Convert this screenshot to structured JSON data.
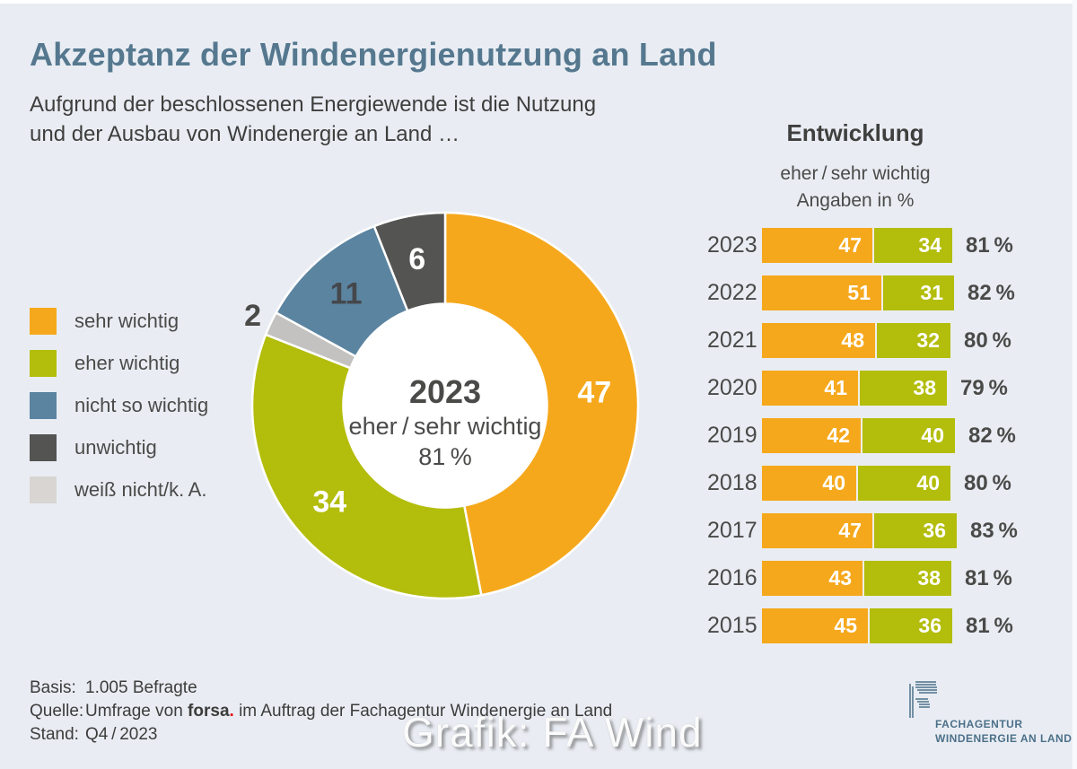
{
  "page": {
    "background": "#E9EDF3"
  },
  "header": {
    "title": "Akzeptanz der Windenergienutzung an Land",
    "subtitle_line1": "Aufgrund der beschlossenen Energiewende ist die Nutzung",
    "subtitle_line2": "und der Ausbau von Windenergie an Land …"
  },
  "colors": {
    "orange": "#F6A81C",
    "green": "#B3BD0B",
    "blue": "#5B84A0",
    "dark_gray": "#545453",
    "light_gray_slice": "#C3C2C1",
    "light_gray_legend": "#D9D5D2",
    "background": "#E9EDF3",
    "title_blue": "#55788F",
    "text_dark": "#4A4A49",
    "forsa_dot_red": "#E30613"
  },
  "legend": {
    "items": [
      {
        "id": "sehr-wichtig",
        "label": "sehr wichtig",
        "color": "#F6A81C"
      },
      {
        "id": "eher-wichtig",
        "label": "eher wichtig",
        "color": "#B3BD0B"
      },
      {
        "id": "nicht-so-wichtig",
        "label": "nicht so wichtig",
        "color": "#5B84A0"
      },
      {
        "id": "unwichtig",
        "label": "unwichtig",
        "color": "#545453"
      },
      {
        "id": "weiss-nicht",
        "label": "weiß nicht/k. A.",
        "color": "#D9D5D2"
      }
    ]
  },
  "chart_data": [
    {
      "type": "pie",
      "subtype": "donut",
      "year": "2023",
      "center": {
        "year": "2023",
        "line": "eher / sehr wichtig",
        "percent": "81 %"
      },
      "slices": [
        {
          "id": "sehr-wichtig",
          "label": "sehr wichtig",
          "value": 47,
          "color": "#F6A81C",
          "label_color": "#FFFFFF",
          "label_pos": "inside"
        },
        {
          "id": "eher-wichtig",
          "label": "eher wichtig",
          "value": 34,
          "color": "#B3BD0B",
          "label_color": "#FFFFFF",
          "label_pos": "inside"
        },
        {
          "id": "weiss-nicht",
          "label": "weiß nicht/k. A.",
          "value": 2,
          "color": "#C3C2C1",
          "label_color": "#4A4A49",
          "label_pos": "outside"
        },
        {
          "id": "nicht-so-wichtig",
          "label": "nicht so wichtig",
          "value": 11,
          "color": "#5B84A0",
          "label_color": "#44474C",
          "label_pos": "inside"
        },
        {
          "id": "unwichtig",
          "label": "unwichtig",
          "value": 6,
          "color": "#545453",
          "label_color": "#FFFFFF",
          "label_pos": "inside"
        }
      ]
    },
    {
      "type": "bar",
      "orientation": "horizontal",
      "stacked": true,
      "heading": "Entwicklung",
      "subheading_line1": "eher / sehr wichtig",
      "subheading_line2": "Angaben in %",
      "series": [
        {
          "name": "sehr wichtig",
          "color": "#F6A81C"
        },
        {
          "name": "eher wichtig",
          "color": "#B3BD0B"
        }
      ],
      "rows": [
        {
          "year": "2023",
          "values": [
            47,
            34
          ],
          "total": "81 %"
        },
        {
          "year": "2022",
          "values": [
            51,
            31
          ],
          "total": "82 %"
        },
        {
          "year": "2021",
          "values": [
            48,
            32
          ],
          "total": "80 %"
        },
        {
          "year": "2020",
          "values": [
            41,
            38
          ],
          "total": "79 %"
        },
        {
          "year": "2019",
          "values": [
            42,
            40
          ],
          "total": "82 %"
        },
        {
          "year": "2018",
          "values": [
            40,
            40
          ],
          "total": "80 %"
        },
        {
          "year": "2017",
          "values": [
            47,
            36
          ],
          "total": "83 %"
        },
        {
          "year": "2016",
          "values": [
            43,
            38
          ],
          "total": "81 %"
        },
        {
          "year": "2015",
          "values": [
            45,
            36
          ],
          "total": "81 %"
        }
      ]
    }
  ],
  "footer": {
    "basis_label": "Basis:",
    "basis_value": "1.005 Befragte",
    "quelle_label": "Quelle:",
    "quelle_prefix": "Umfrage von ",
    "quelle_brand": "forsa",
    "quelle_dot": ".",
    "quelle_suffix": " im Auftrag der Fachagentur Windenergie an Land",
    "stand_label": "Stand:",
    "stand_value": "Q4 / 2023"
  },
  "watermark": {
    "text": "Grafik: FA Wind"
  },
  "logo": {
    "line1": "FACHAGENTUR",
    "line2": "WINDENERGIE AN LAND",
    "color": "#4C7089"
  }
}
